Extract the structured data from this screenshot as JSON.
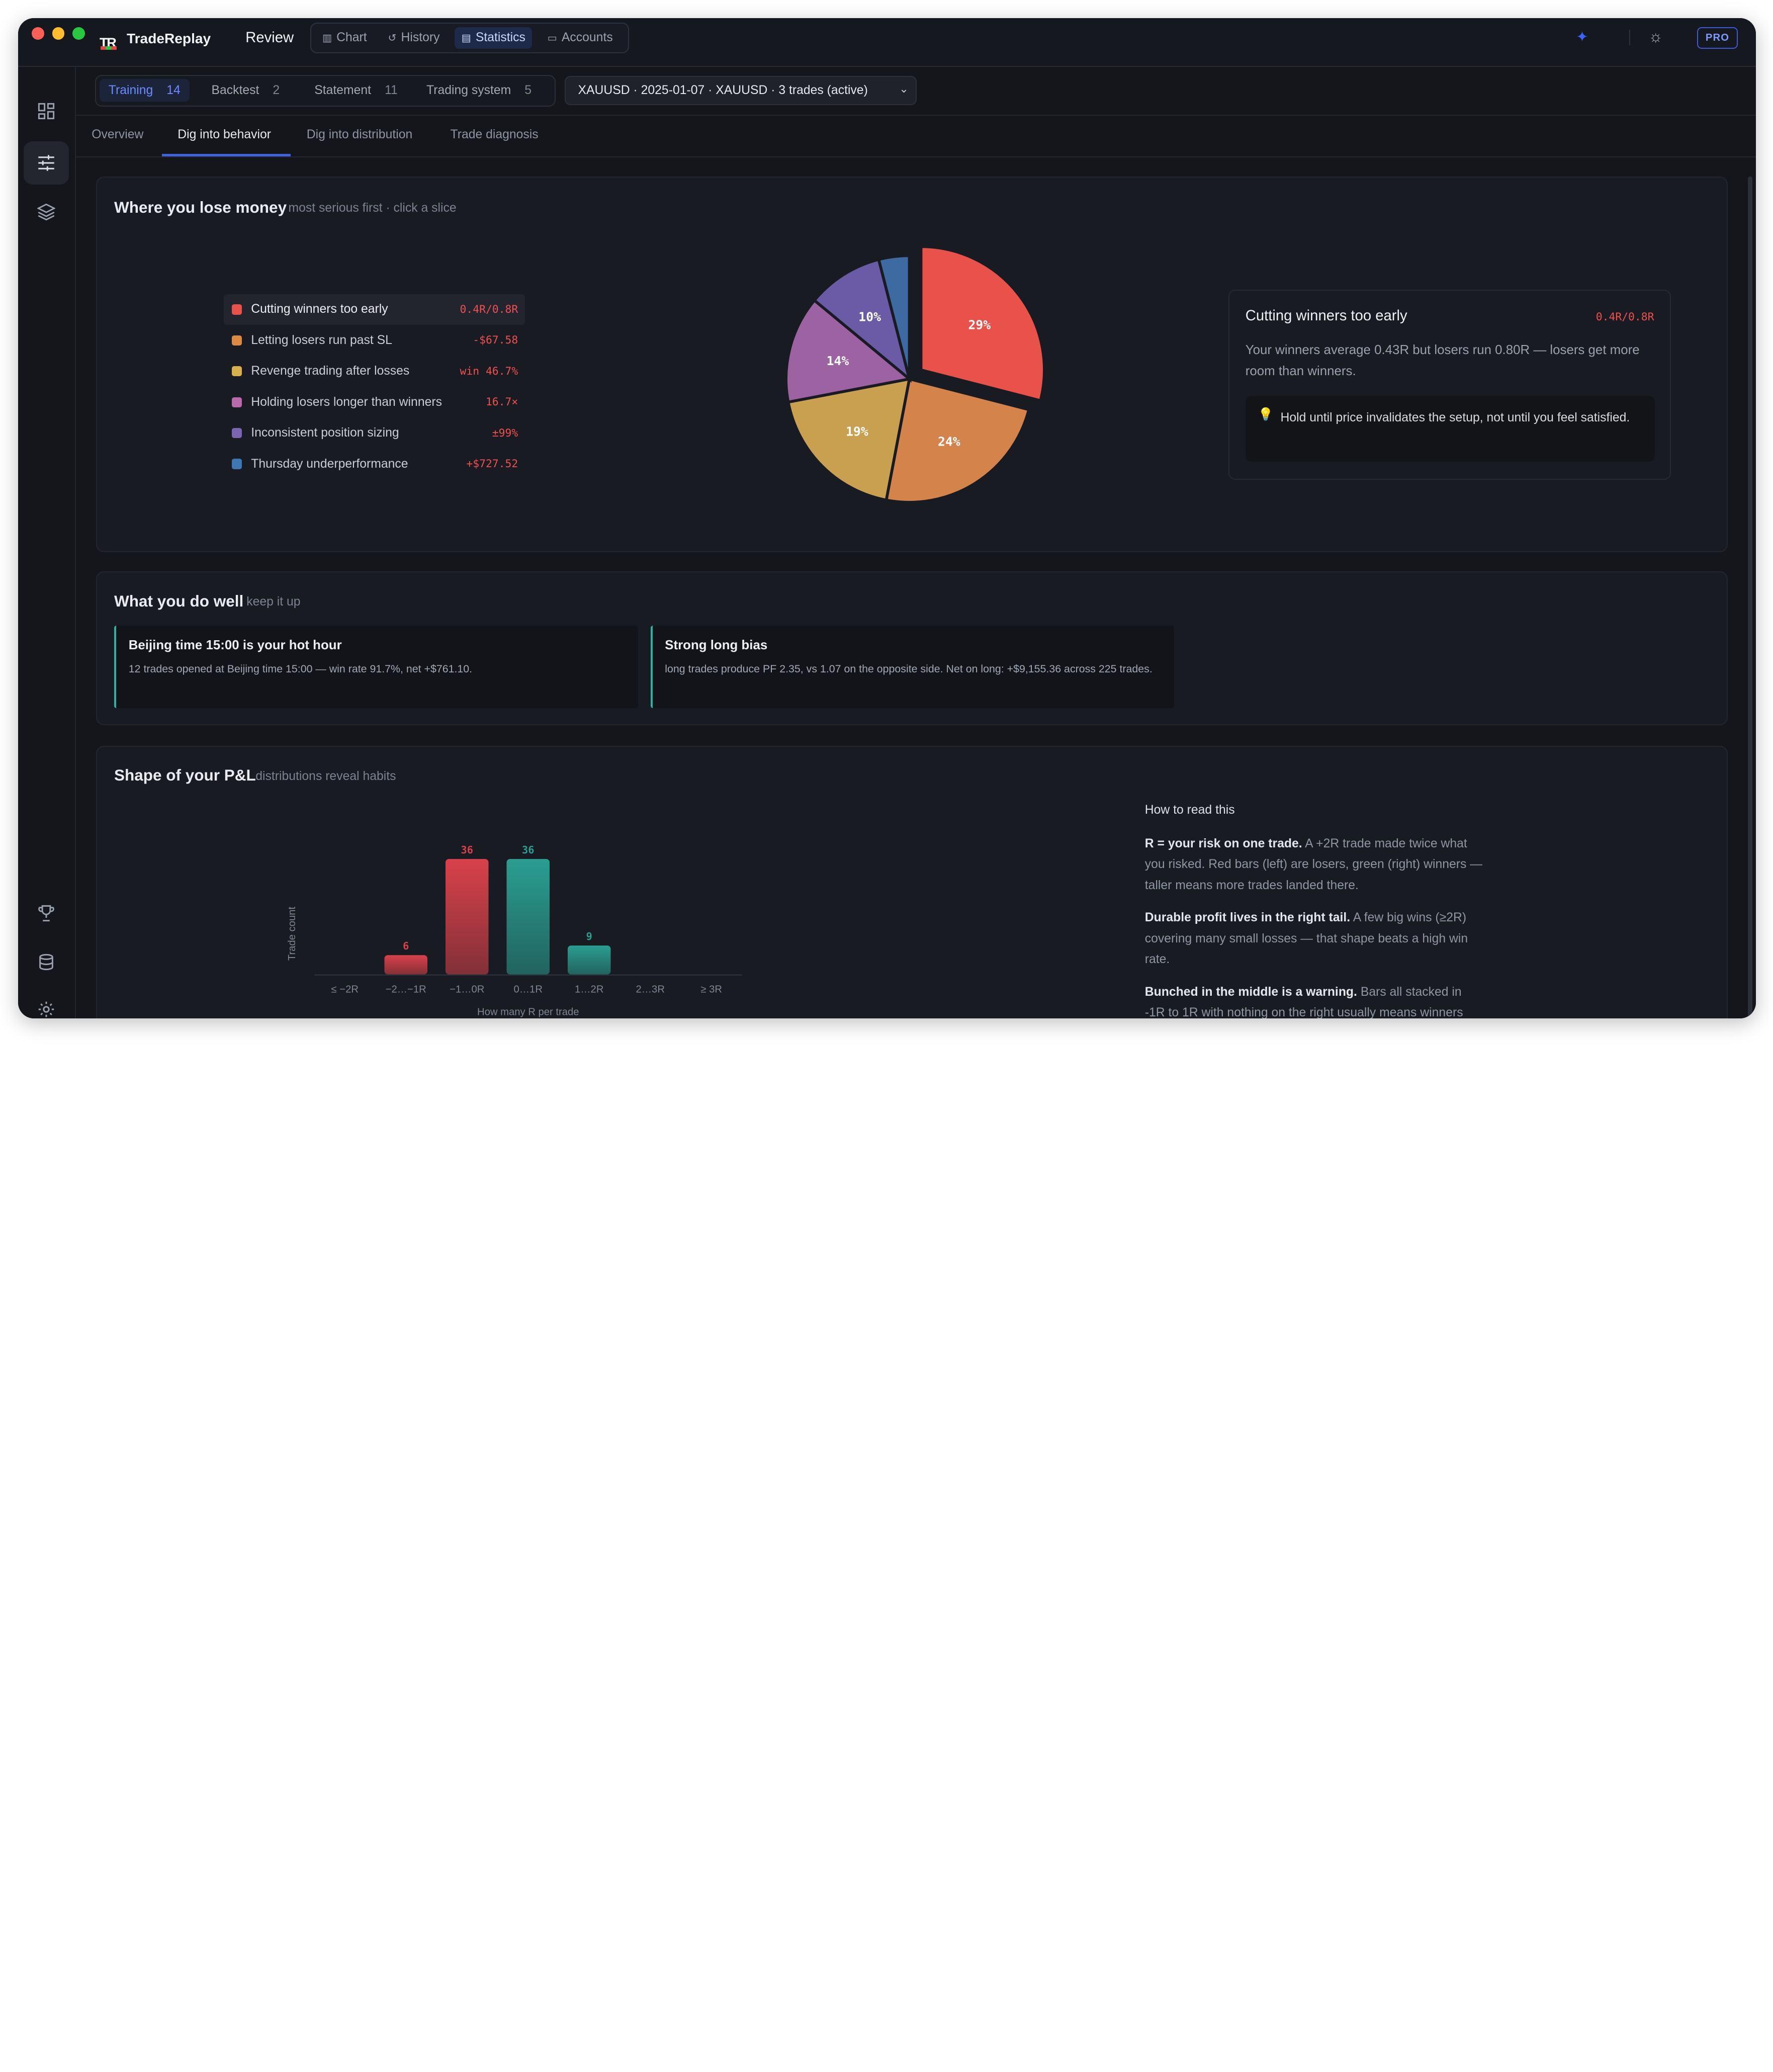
{
  "app": {
    "brand": "TradeReplay",
    "logo_text": "TR",
    "section": "Review"
  },
  "topnav": [
    {
      "label": "Chart",
      "icon": "chart-icon"
    },
    {
      "label": "History",
      "icon": "history-icon"
    },
    {
      "label": "Statistics",
      "icon": "statistics-icon",
      "active": true
    },
    {
      "label": "Accounts",
      "icon": "accounts-icon"
    }
  ],
  "topbar_right": {
    "pro_label": "PRO"
  },
  "segments": [
    {
      "label": "Training",
      "count": "14",
      "active": true
    },
    {
      "label": "Backtest",
      "count": "2"
    },
    {
      "label": "Statement",
      "count": "11"
    },
    {
      "label": "Trading system",
      "count": "5"
    }
  ],
  "session_select": {
    "value": "XAUUSD · 2025-01-07 · XAUUSD · 3 trades (active)"
  },
  "tabs": [
    {
      "label": "Overview"
    },
    {
      "label": "Dig into behavior",
      "active": true
    },
    {
      "label": "Dig into distribution"
    },
    {
      "label": "Trade diagnosis"
    }
  ],
  "lose_panel": {
    "title": "Where you lose money",
    "subtitle": "most serious first · click a slice",
    "items": [
      {
        "label": "Cutting winners too early",
        "value": "0.4R/0.8R",
        "color": "#e8524a"
      },
      {
        "label": "Letting losers run past SL",
        "value": "-$67.58",
        "color": "#dd8843"
      },
      {
        "label": "Revenge trading after losses",
        "value": "win 46.7%",
        "color": "#d7b04d"
      },
      {
        "label": "Holding losers longer than winners",
        "value": "16.7×",
        "color": "#b86aaf"
      },
      {
        "label": "Inconsistent position sizing",
        "value": "±99%",
        "color": "#7b64b2"
      },
      {
        "label": "Thursday underperformance",
        "value": "+$727.52",
        "color": "#3f77b3"
      }
    ],
    "pie_slices": [
      {
        "label": "29%",
        "value": 29,
        "color": "#e8524a"
      },
      {
        "label": "24%",
        "value": 24,
        "color": "#d4834a"
      },
      {
        "label": "19%",
        "value": 19,
        "color": "#c9a04f"
      },
      {
        "label": "14%",
        "value": 14,
        "color": "#9d62a2"
      },
      {
        "label": "10%",
        "value": 10,
        "color": "#6b5aa6"
      },
      {
        "label": "",
        "value": 4,
        "color": "#3d6aa1"
      }
    ],
    "detail": {
      "title": "Cutting winners too early",
      "value": "0.4R/0.8R",
      "text": "Your winners average 0.43R but losers run 0.80R — losers get more room than winners.",
      "tip": "Hold until price invalidates the setup, not until you feel satisfied."
    }
  },
  "well_panel": {
    "title": "What you do well",
    "subtitle": "keep it up",
    "cards": [
      {
        "title": "Beijing time 15:00 is your hot hour",
        "text": "12 trades opened at Beijing time 15:00 — win rate 91.7%, net +$761.10."
      },
      {
        "title": "Strong long bias",
        "text": "long trades produce PF 2.35, vs 1.07 on the opposite side. Net on long: +$9,155.36 across 225 trades."
      }
    ]
  },
  "pnl_panel": {
    "title": "Shape of your P&L",
    "subtitle": "distributions reveal habits",
    "read": {
      "heading": "How to read this",
      "paragraphs": [
        {
          "bold": "R = your risk on one trade.",
          "rest": " A +2R trade made twice what you risked. Red bars (left) are losers, green (right) winners — taller means more trades landed there."
        },
        {
          "bold": "Durable profit lives in the right tail.",
          "rest": " A few big wins (≥2R) covering many small losses — that shape beats a high win rate."
        },
        {
          "bold": "Bunched in the middle is a warning.",
          "rest": " Bars all stacked in -1R to 1R with nothing on the right usually means winners"
        }
      ]
    }
  },
  "chart_data": {
    "type": "bar",
    "categories": [
      "≤ −2R",
      "−2…−1R",
      "−1…0R",
      "0…1R",
      "1…2R",
      "2…3R",
      "≥ 3R"
    ],
    "values": [
      0,
      6,
      36,
      36,
      9,
      0,
      0
    ],
    "colors": [
      "#d9414a",
      "#d9414a",
      "#d9414a",
      "#2a9e91",
      "#2a9e91",
      "#2a9e91",
      "#2a9e91"
    ],
    "xlabel": "How many R per trade",
    "ylabel": "Trade count",
    "grid": false
  }
}
